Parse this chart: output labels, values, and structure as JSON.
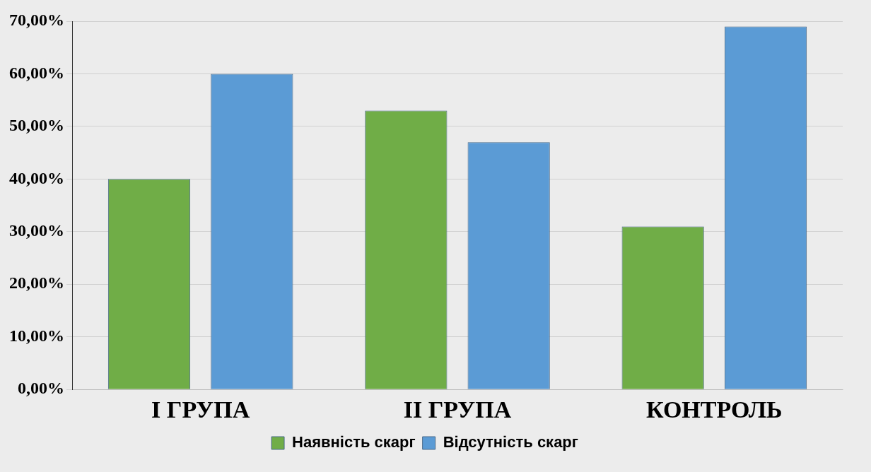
{
  "chart_data": {
    "type": "bar",
    "categories": [
      "I ГРУПА",
      "II ГРУПА",
      "КОНТРОЛЬ"
    ],
    "series": [
      {
        "name": "Наявність скарг",
        "color": "#70ad47",
        "values": [
          40,
          53,
          31
        ]
      },
      {
        "name": "Відсутність скарг",
        "color": "#5b9bd5",
        "values": [
          60,
          47,
          69
        ]
      }
    ],
    "ylim": [
      0,
      70
    ],
    "yticks": [
      {
        "value": 0,
        "label": "0,00%"
      },
      {
        "value": 10,
        "label": "10,00%"
      },
      {
        "value": 20,
        "label": "20,00%"
      },
      {
        "value": 30,
        "label": "30,00%"
      },
      {
        "value": 40,
        "label": "40,00%"
      },
      {
        "value": 50,
        "label": "50,00%"
      },
      {
        "value": 60,
        "label": "60,00%"
      },
      {
        "value": 70,
        "label": "70,00%"
      }
    ],
    "grid": "y",
    "legend": "bottom"
  }
}
